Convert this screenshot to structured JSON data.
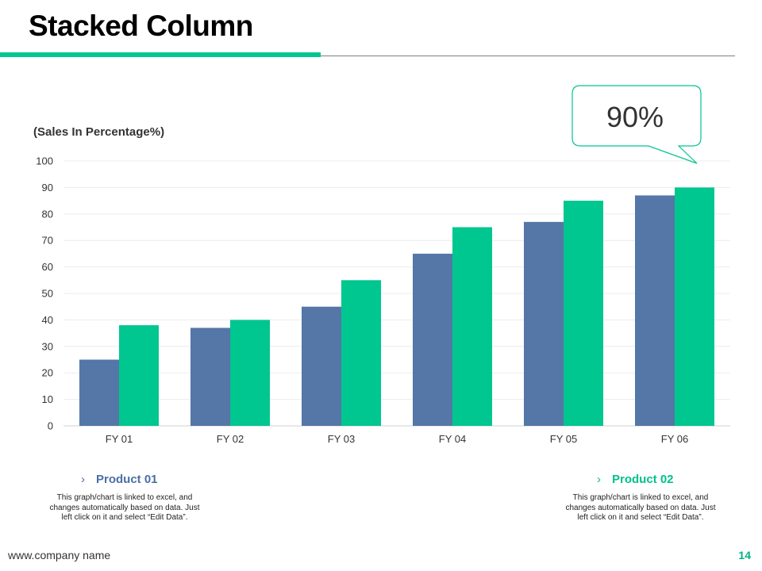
{
  "slide": {
    "title": "Stacked Column",
    "footer": "www.company name",
    "page_number": "14",
    "callout_value": "90%"
  },
  "colors": {
    "accent": "#00c68f",
    "product_01": "#5477a8",
    "product_02": "#00c68f"
  },
  "products": [
    {
      "name": "Product 01",
      "description": "This graph/chart is linked to excel, and changes automatically  based on data. Just left click on it and select “Edit Data”."
    },
    {
      "name": "Product 02",
      "description": "This graph/chart is linked to excel, and changes automatically  based on data. Just left click on it and select “Edit Data”."
    }
  ],
  "chart_data": {
    "type": "bar",
    "title": "",
    "ylabel": "(Sales In Percentage%)",
    "xlabel": "",
    "categories": [
      "FY 01",
      "FY 02",
      "FY 03",
      "FY 04",
      "FY 05",
      "FY 06"
    ],
    "series": [
      {
        "name": "Product 01",
        "values": [
          25,
          37,
          45,
          65,
          77,
          87
        ]
      },
      {
        "name": "Product 02",
        "values": [
          38,
          40,
          55,
          75,
          85,
          90
        ]
      }
    ],
    "ylim": [
      0,
      100
    ],
    "yticks": [
      0,
      10,
      20,
      30,
      40,
      50,
      60,
      70,
      80,
      90,
      100
    ],
    "grid": true
  }
}
